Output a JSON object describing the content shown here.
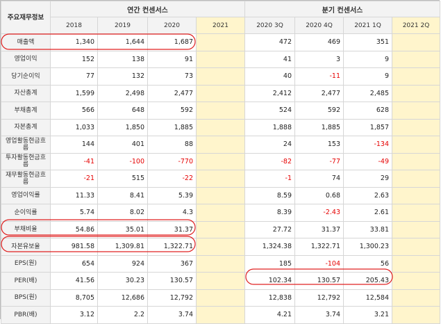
{
  "header": {
    "corner_label": "주요재무정보",
    "annual_group": "연간 컨센서스",
    "quarter_group": "분기 컨센서스",
    "annual_cols": [
      "2018",
      "2019",
      "2020",
      "2021"
    ],
    "quarter_cols": [
      "2020 3Q",
      "2020 4Q",
      "2021 1Q",
      "2021 2Q"
    ]
  },
  "rows": [
    {
      "label": "매출액",
      "annual": [
        "1,340",
        "1,644",
        "1,687",
        ""
      ],
      "quarter": [
        "472",
        "469",
        "351",
        ""
      ]
    },
    {
      "label": "영업이익",
      "annual": [
        "152",
        "138",
        "91",
        ""
      ],
      "quarter": [
        "41",
        "3",
        "9",
        ""
      ]
    },
    {
      "label": "당기순이익",
      "annual": [
        "77",
        "132",
        "73",
        ""
      ],
      "quarter": [
        "40",
        "-11",
        "9",
        ""
      ]
    },
    {
      "label": "자산총계",
      "annual": [
        "1,599",
        "2,498",
        "2,477",
        ""
      ],
      "quarter": [
        "2,412",
        "2,477",
        "2,485",
        ""
      ]
    },
    {
      "label": "부채총계",
      "annual": [
        "566",
        "648",
        "592",
        ""
      ],
      "quarter": [
        "524",
        "592",
        "628",
        ""
      ]
    },
    {
      "label": "자본총계",
      "annual": [
        "1,033",
        "1,850",
        "1,885",
        ""
      ],
      "quarter": [
        "1,888",
        "1,885",
        "1,857",
        ""
      ]
    },
    {
      "label": "영업활동현금흐름",
      "annual": [
        "144",
        "401",
        "88",
        ""
      ],
      "quarter": [
        "24",
        "153",
        "-134",
        ""
      ]
    },
    {
      "label": "투자활동현금흐름",
      "annual": [
        "-41",
        "-100",
        "-770",
        ""
      ],
      "quarter": [
        "-82",
        "-77",
        "-49",
        ""
      ]
    },
    {
      "label": "재무활동현금흐름",
      "annual": [
        "-21",
        "515",
        "-22",
        ""
      ],
      "quarter": [
        "-1",
        "74",
        "29",
        ""
      ]
    },
    {
      "label": "영업이익률",
      "annual": [
        "11.33",
        "8.41",
        "5.39",
        ""
      ],
      "quarter": [
        "8.59",
        "0.68",
        "2.63",
        ""
      ]
    },
    {
      "label": "순이익률",
      "annual": [
        "5.74",
        "8.02",
        "4.3",
        ""
      ],
      "quarter": [
        "8.39",
        "-2.43",
        "2.61",
        ""
      ]
    },
    {
      "label": "부채비율",
      "annual": [
        "54.86",
        "35.01",
        "31.37",
        ""
      ],
      "quarter": [
        "27.72",
        "31.37",
        "33.81",
        ""
      ]
    },
    {
      "label": "자본유보율",
      "annual": [
        "981.58",
        "1,309.81",
        "1,322.71",
        ""
      ],
      "quarter": [
        "1,324.38",
        "1,322.71",
        "1,300.23",
        ""
      ]
    },
    {
      "label": "EPS(원)",
      "annual": [
        "654",
        "924",
        "367",
        ""
      ],
      "quarter": [
        "185",
        "-104",
        "56",
        ""
      ]
    },
    {
      "label": "PER(배)",
      "annual": [
        "41.56",
        "30.23",
        "130.57",
        ""
      ],
      "quarter": [
        "102.34",
        "130.57",
        "205.43",
        ""
      ]
    },
    {
      "label": "BPS(원)",
      "annual": [
        "8,705",
        "12,686",
        "12,792",
        ""
      ],
      "quarter": [
        "12,838",
        "12,792",
        "12,584",
        ""
      ]
    },
    {
      "label": "PBR(배)",
      "annual": [
        "3.12",
        "2.2",
        "3.74",
        ""
      ],
      "quarter": [
        "4.21",
        "3.74",
        "3.21",
        ""
      ]
    }
  ],
  "colors": {
    "highlight_column": "#fff5cc",
    "negative_value": "#e60000",
    "annotation_oval": "#e02020",
    "header_background": "#f3f3f3"
  }
}
